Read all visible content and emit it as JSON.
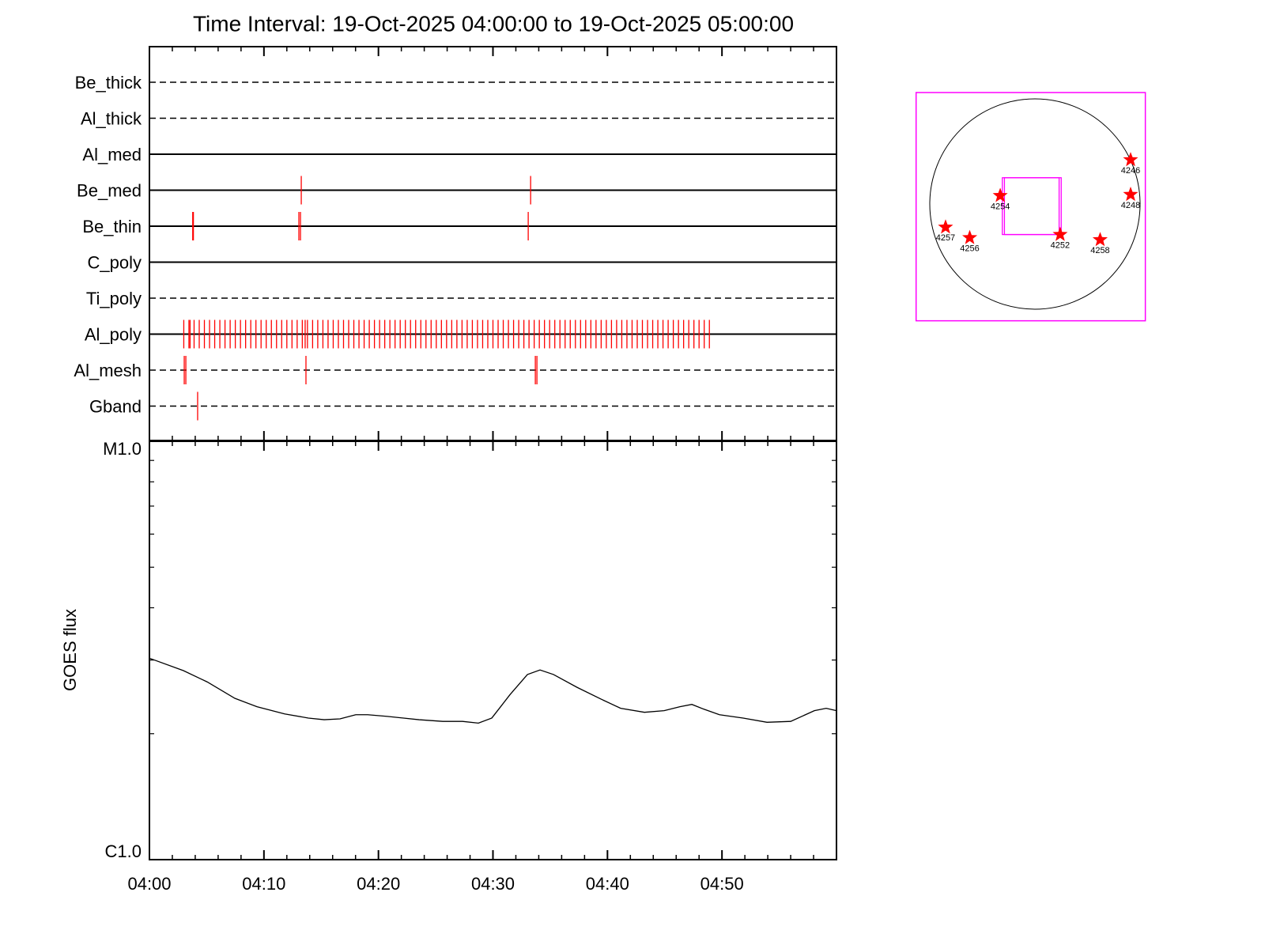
{
  "chart_data": [
    {
      "type": "timeline",
      "title": "Time Interval: 19-Oct-2025 04:00:00 to 19-Oct-2025 05:00:00",
      "categories": [
        "Be_thick",
        "Al_thick",
        "Al_med",
        "Be_med",
        "Be_thin",
        "C_poly",
        "Ti_poly",
        "Al_poly",
        "Al_mesh",
        "Gband"
      ],
      "line_styles": [
        "dashed",
        "dashed",
        "solid",
        "solid",
        "solid",
        "solid",
        "dashed",
        "solid",
        "dashed",
        "dashed"
      ],
      "color": "#ff0000",
      "xlim": [
        0,
        60
      ],
      "events": [
        [],
        [],
        [],
        [
          13.26,
          33.29
        ],
        [
          3.78,
          3.84,
          13.05,
          13.19,
          33.08
        ],
        [],
        [],
        [
          3.0,
          3.45,
          3.55,
          3.9,
          4.35,
          4.8,
          5.25,
          5.7,
          6.15,
          6.6,
          7.05,
          7.5,
          7.95,
          8.4,
          8.85,
          9.3,
          9.75,
          10.2,
          10.65,
          11.1,
          11.55,
          12.0,
          12.45,
          12.9,
          13.35,
          13.6,
          13.8,
          14.25,
          14.7,
          15.15,
          15.6,
          16.05,
          16.5,
          16.95,
          17.4,
          17.85,
          18.3,
          18.75,
          19.2,
          19.65,
          20.1,
          20.55,
          21.0,
          21.45,
          21.9,
          22.35,
          22.8,
          23.25,
          23.7,
          24.15,
          24.6,
          25.05,
          25.5,
          25.95,
          26.4,
          26.85,
          27.3,
          27.75,
          28.2,
          28.65,
          29.1,
          29.55,
          30.0,
          30.45,
          30.9,
          31.35,
          31.8,
          32.25,
          32.7,
          33.15,
          33.6,
          34.05,
          34.5,
          34.95,
          35.4,
          35.85,
          36.3,
          36.75,
          37.2,
          37.65,
          38.1,
          38.55,
          39.0,
          39.45,
          39.9,
          40.35,
          40.8,
          41.25,
          41.7,
          42.15,
          42.6,
          43.05,
          43.5,
          43.95,
          44.4,
          44.85,
          45.3,
          45.75,
          46.2,
          46.65,
          47.1,
          47.55,
          48.0,
          48.45,
          48.9
        ],
        [
          3.04,
          3.18,
          13.67,
          33.7,
          33.84
        ],
        [
          4.21
        ]
      ]
    },
    {
      "type": "line",
      "ylabel": "GOES flux",
      "log_scale": true,
      "color": "#000000",
      "xlim": [
        0,
        60
      ],
      "xticks": [
        {
          "value": 0,
          "label": "04:00"
        },
        {
          "value": 10,
          "label": "04:10"
        },
        {
          "value": 20,
          "label": "04:20"
        },
        {
          "value": 30,
          "label": "04:30"
        },
        {
          "value": 40,
          "label": "04:40"
        },
        {
          "value": 50,
          "label": "04:50"
        }
      ],
      "ylim": [
        1e-06,
        1e-05
      ],
      "yticks": [
        {
          "value": 1e-06,
          "label": "C1.0"
        },
        {
          "value": 1e-05,
          "label": "M1.0"
        }
      ],
      "yminor": [
        2e-06,
        3e-06,
        4e-06,
        5e-06,
        6e-06,
        7e-06,
        8e-06,
        9e-06
      ],
      "x": [
        0,
        2.97,
        5.04,
        7.46,
        9.39,
        11.81,
        13.88,
        15.26,
        16.64,
        18.02,
        19.06,
        20.78,
        23.54,
        25.62,
        27.34,
        28.73,
        29.9,
        31.49,
        33.01,
        34.11,
        35.29,
        37.36,
        39.43,
        41.15,
        43.23,
        44.95,
        46.33,
        47.37,
        48.4,
        49.78,
        51.85,
        53.93,
        56.0,
        58.07,
        59.1,
        60.0
      ],
      "values": [
        3.03e-06,
        2.83e-06,
        2.66e-06,
        2.43e-06,
        2.32e-06,
        2.23e-06,
        2.18e-06,
        2.16e-06,
        2.17e-06,
        2.22e-06,
        2.22e-06,
        2.2e-06,
        2.16e-06,
        2.14e-06,
        2.14e-06,
        2.12e-06,
        2.18e-06,
        2.48e-06,
        2.77e-06,
        2.84e-06,
        2.77e-06,
        2.58e-06,
        2.42e-06,
        2.3e-06,
        2.25e-06,
        2.27e-06,
        2.32e-06,
        2.35e-06,
        2.29e-06,
        2.22e-06,
        2.18e-06,
        2.13e-06,
        2.14e-06,
        2.27e-06,
        2.3e-06,
        2.27e-06
      ]
    },
    {
      "type": "disk",
      "xlim": [
        -1.13,
        1.05
      ],
      "ylim": [
        -1.11,
        1.06
      ],
      "frame_color": "#ff00ff",
      "marker_color": "#ff0000",
      "fov": [
        [
          -0.31,
          -0.29,
          0.25,
          0.25
        ],
        [
          -0.29,
          -0.29,
          0.23,
          0.25
        ]
      ],
      "regions": [
        {
          "name": "4246",
          "x": 0.91,
          "y": 0.42
        },
        {
          "name": "4248",
          "x": 0.91,
          "y": 0.09
        },
        {
          "name": "4254",
          "x": -0.33,
          "y": 0.08
        },
        {
          "name": "4257",
          "x": -0.85,
          "y": -0.22
        },
        {
          "name": "4256",
          "x": -0.62,
          "y": -0.32
        },
        {
          "name": "4252",
          "x": 0.24,
          "y": -0.29
        },
        {
          "name": "4258",
          "x": 0.62,
          "y": -0.34
        }
      ]
    }
  ]
}
